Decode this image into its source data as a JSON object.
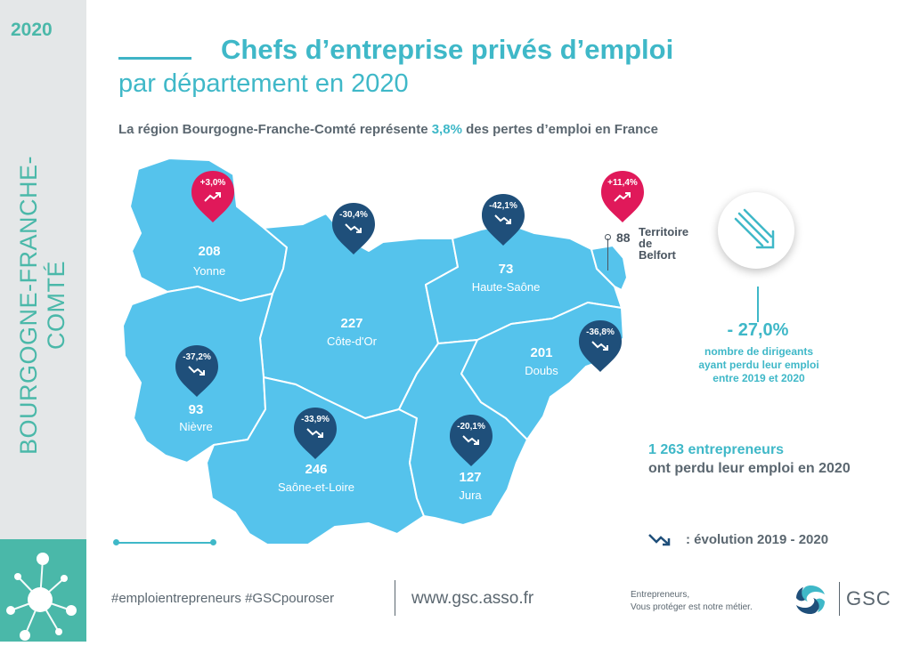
{
  "sidebar": {
    "year": "2020",
    "region": "BOURGOGNE-FRANCHE-COMTÉ"
  },
  "title": {
    "line1": "Chefs d’entreprise privés d’emploi",
    "line2": "par département en 2020"
  },
  "subtitle": {
    "before": "La région Bourgogne-Franche-Comté représente ",
    "pct": "3,8%",
    "after": " des pertes d’emploi en France"
  },
  "colors": {
    "map_fill": "#55c3ec",
    "pin_negative": "#1f4f7a",
    "pin_positive": "#e0195a",
    "accent": "#3fb8c8",
    "text_gray": "#5b6770"
  },
  "departments": [
    {
      "name": "Yonne",
      "count": "208",
      "evolution": "+3,0%",
      "trend": "up"
    },
    {
      "name": "Côte-d'Or",
      "count": "227",
      "evolution": "-30,4%",
      "trend": "down"
    },
    {
      "name": "Haute-Saône",
      "count": "73",
      "evolution": "-42,1%",
      "trend": "down"
    },
    {
      "name": "Nièvre",
      "count": "93",
      "evolution": "-37,2%",
      "trend": "down"
    },
    {
      "name": "Saône-et-Loire",
      "count": "246",
      "evolution": "-33,9%",
      "trend": "down"
    },
    {
      "name": "Jura",
      "count": "127",
      "evolution": "-20,1%",
      "trend": "down"
    },
    {
      "name": "Doubs",
      "count": "201",
      "evolution": "-36,8%",
      "trend": "down"
    },
    {
      "name": "Territoire de Belfort",
      "count": "88",
      "evolution": "+11,4%",
      "trend": "up"
    }
  ],
  "belfort": {
    "count": "88",
    "name_l1": "Territoire",
    "name_l2": "de",
    "name_l3": "Belfort"
  },
  "stats": {
    "pct": "- 27,0%",
    "text_l1": "nombre de dirigeants",
    "text_l2": "ayant perdu leur emploi",
    "text_l3": "entre 2019 et 2020",
    "entrepreneurs_l1": "1 263 entrepreneurs",
    "entrepreneurs_l2": "ont perdu leur emploi en 2020"
  },
  "legend": {
    "text": ": évolution 2019 - 2020",
    "icon": "trend-down-icon"
  },
  "footer": {
    "hashtags": "#emploientrepreneurs #GSCpouroser",
    "website": "www.gsc.asso.fr",
    "tagline_l1": "Entrepreneurs,",
    "tagline_l2": "Vous protéger est notre métier.",
    "logo_text": "GSC"
  }
}
